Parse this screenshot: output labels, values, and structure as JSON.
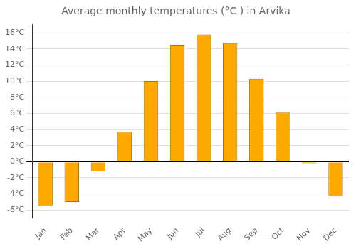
{
  "chart_data": {
    "type": "bar",
    "title": "Average monthly temperatures (°C ) in Arvika",
    "categories": [
      "Jan",
      "Feb",
      "Mar",
      "Apr",
      "May",
      "Jun",
      "Jul",
      "Aug",
      "Sep",
      "Oct",
      "Nov",
      "Dec"
    ],
    "values": [
      -5.5,
      -5.0,
      -1.2,
      3.7,
      10.0,
      14.5,
      15.8,
      14.7,
      10.3,
      6.1,
      -0.2,
      -4.3
    ],
    "color": "#FFAA00",
    "ylim": [
      -7,
      17
    ],
    "yticks": [
      {
        "value": -6,
        "label": "-6°C"
      },
      {
        "value": -4,
        "label": "-4°C"
      },
      {
        "value": -2,
        "label": "-2°C"
      },
      {
        "value": 0,
        "label": "0°C"
      },
      {
        "value": 2,
        "label": "2°C"
      },
      {
        "value": 4,
        "label": "4°C"
      },
      {
        "value": 6,
        "label": "6°C"
      },
      {
        "value": 8,
        "label": "8°C"
      },
      {
        "value": 10,
        "label": "10°C"
      },
      {
        "value": 12,
        "label": "12°C"
      },
      {
        "value": 14,
        "label": "14°C"
      },
      {
        "value": 16,
        "label": "16°C"
      }
    ],
    "grid": true
  }
}
